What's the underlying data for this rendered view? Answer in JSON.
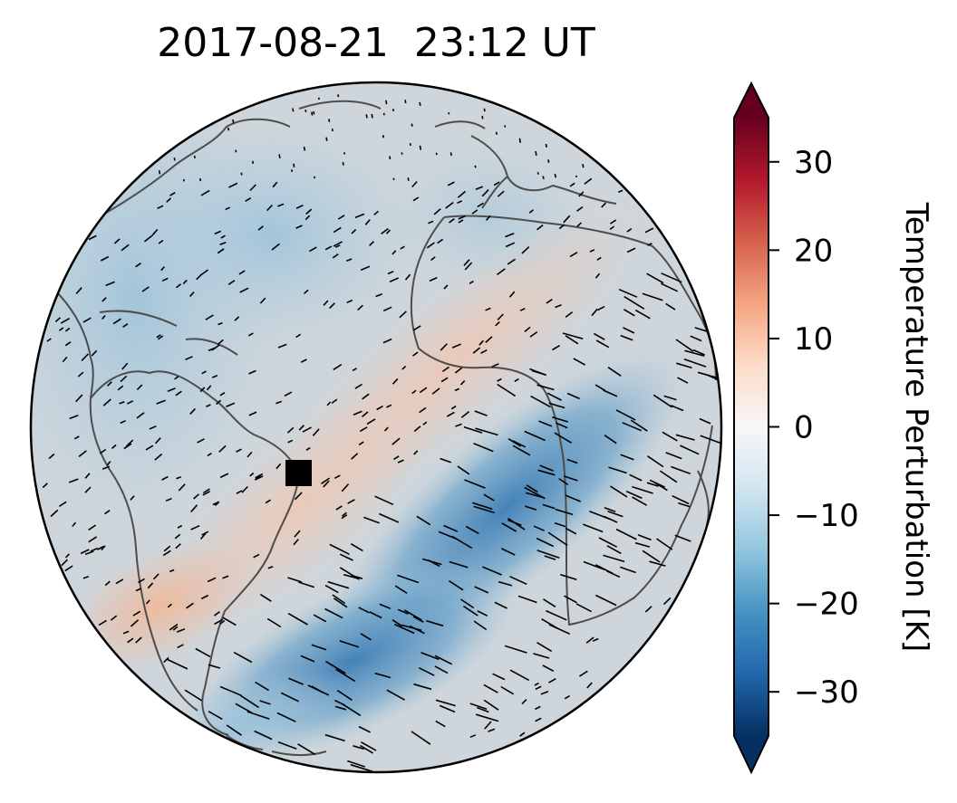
{
  "title": "2017-08-21  23:12 UT",
  "colorbar": {
    "label": "Temperature Perturbation [K]",
    "ticks": [
      {
        "value": 30,
        "label": "30"
      },
      {
        "value": 20,
        "label": "20"
      },
      {
        "value": 10,
        "label": "10"
      },
      {
        "value": 0,
        "label": "0"
      },
      {
        "value": -10,
        "label": "−10"
      },
      {
        "value": -20,
        "label": "−20"
      },
      {
        "value": -30,
        "label": "−30"
      }
    ],
    "range": [
      -35,
      35
    ],
    "extend": "both",
    "colormap": "RdBu_r",
    "colors": {
      "max_extend": "#67001f",
      "min_extend": "#053061",
      "stops": [
        "#053061",
        "#2166ac",
        "#4393c3",
        "#92c5de",
        "#d1e5f0",
        "#f7f7f7",
        "#fddbc7",
        "#f4a582",
        "#d6604d",
        "#b2182b",
        "#67001f"
      ]
    }
  },
  "map": {
    "projection": "orthographic",
    "marker": {
      "shape": "square",
      "color": "#000000"
    },
    "coastline_color": "#4d4d4d",
    "wind_vector_color": "#000000",
    "background_perturbation": "#cfd6db"
  }
}
